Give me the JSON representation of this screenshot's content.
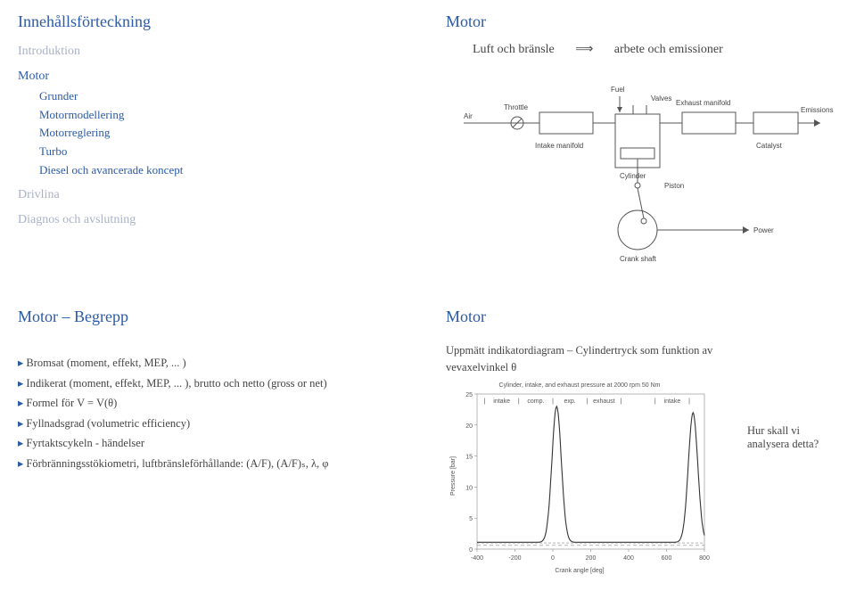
{
  "q1": {
    "title": "Innehållsförteckning",
    "items": [
      {
        "label": "Introduktion",
        "level": 0,
        "active": false
      },
      {
        "label": "Motor",
        "level": 0,
        "active": true
      },
      {
        "label": "Grunder",
        "level": 1,
        "active": true
      },
      {
        "label": "Motormodellering",
        "level": 1,
        "active": true
      },
      {
        "label": "Motorreglering",
        "level": 1,
        "active": true
      },
      {
        "label": "Turbo",
        "level": 1,
        "active": true
      },
      {
        "label": "Diesel och avancerade koncept",
        "level": 1,
        "active": true
      },
      {
        "label": "Drivlina",
        "level": 0,
        "active": false
      },
      {
        "label": "Diagnos och avslutning",
        "level": 0,
        "active": false
      }
    ]
  },
  "q2": {
    "title": "Motor",
    "formula_left": "Luft och bränsle",
    "formula_arrow": "⟹",
    "formula_right": "arbete och emissioner",
    "engine": {
      "labels": {
        "air": "Air",
        "throttle": "Throttle",
        "fuel": "Fuel",
        "valves": "Valves",
        "exhaust_manifold": "Exhaust manifold",
        "emissions": "Emissions",
        "intake_manifold": "Intake manifold",
        "cylinder": "Cylinder",
        "catalyst": "Catalyst",
        "piston": "Piston",
        "crank_shaft": "Crank shaft",
        "power": "Power"
      },
      "colors": {
        "stroke": "#555555",
        "fill_box": "#ffffff"
      }
    }
  },
  "q3": {
    "title": "Motor – Begrepp",
    "bullets": [
      "Bromsat (moment, effekt, MEP, ... )",
      "Indikerat (moment, effekt, MEP, ... ), brutto och netto (gross or net)",
      "Formel för V = V(θ)",
      "Fyllnadsgrad (volumetric efficiency)",
      "Fyrtaktscykeln - händelser",
      "Förbränningsstökiometri, luftbränsleförhållande: (A/F), (A/F)ₛ, λ, φ"
    ]
  },
  "q4": {
    "title": "Motor",
    "caption_line1": "Uppmätt indikatordiagram – Cylindertryck som funktion av",
    "caption_line2": "vevaxelvinkel θ",
    "side_note": "Hur skall vi analysera detta?",
    "chart": {
      "title": "Cylinder, intake, and exhaust pressure at 2000 rpm 50 Nm",
      "phases": [
        "intake",
        "comp.",
        "exp.",
        "exhaust",
        "intake"
      ],
      "xlim": [
        -400,
        800
      ],
      "xtick_step": 200,
      "ylim": [
        0,
        25
      ],
      "ytick_step": 5,
      "ylabel": "Pressure [bar]",
      "xlabel": "Crank angle [deg]",
      "line_color": "#333333",
      "aux_line_color": "#888888",
      "grid_color": "#cccccc",
      "background_color": "#ffffff",
      "peak1_x": 20,
      "peak1_y": 23,
      "peak2_x": 740,
      "peak2_y": 22,
      "baseline_y": 1.1
    }
  }
}
